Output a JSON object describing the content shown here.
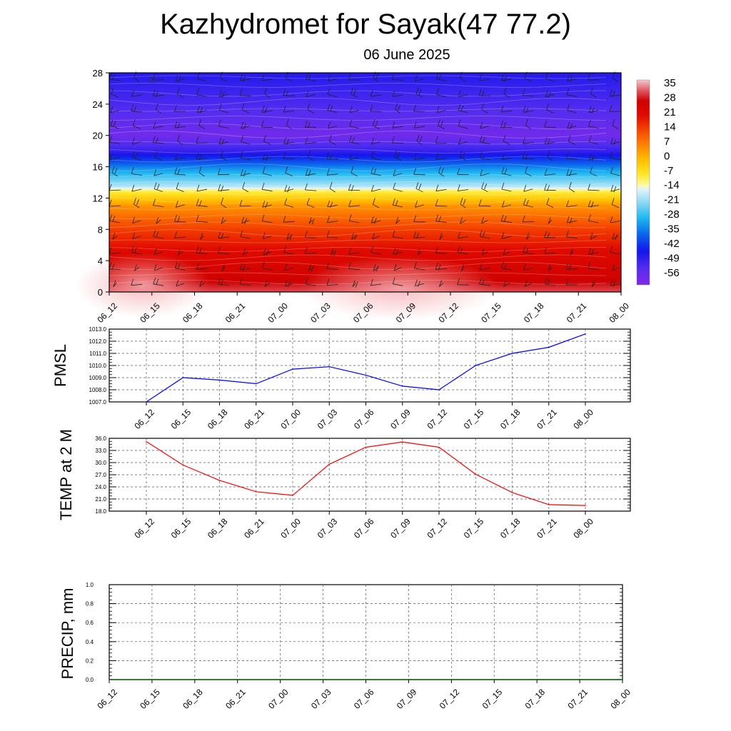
{
  "title": "Kazhydromet for Sayak(47 77.2)",
  "subtitle": "06 June 2025",
  "colors": {
    "pmsl_line": "#0000ff",
    "temp_line": "#ff0000",
    "precip_line": "#006400",
    "grid": "#555555"
  },
  "chart_data": [
    {
      "type": "heatmap",
      "title": "",
      "x_ticks": [
        "06_12",
        "06_15",
        "06_18",
        "06_21",
        "07_00",
        "07_03",
        "07_06",
        "07_09",
        "07_12",
        "07_15",
        "07_18",
        "07_21",
        "08_00"
      ],
      "y_ticks": [
        0,
        4,
        8,
        12,
        16,
        20,
        24,
        28
      ],
      "ylim": [
        0,
        28
      ],
      "colorbar_labels": [
        "35",
        "28",
        "21",
        "14",
        "7",
        "0",
        "-7",
        "-14",
        "-21",
        "-28",
        "-35",
        "-42",
        "-49",
        "-56"
      ],
      "colorbar_range": [
        -60,
        38
      ],
      "vertical_profile": [
        {
          "level": 0,
          "value": 32
        },
        {
          "level": 2,
          "value": 26
        },
        {
          "level": 5,
          "value": 22
        },
        {
          "level": 8,
          "value": 15
        },
        {
          "level": 11,
          "value": 5
        },
        {
          "level": 12.9,
          "value": -9
        },
        {
          "level": 13.5,
          "value": -18
        },
        {
          "level": 15.5,
          "value": -30
        },
        {
          "level": 18,
          "value": -48
        },
        {
          "level": 20,
          "value": -57
        },
        {
          "level": 23,
          "value": -52
        },
        {
          "level": 28,
          "value": -46
        }
      ],
      "annotations": [
        "wind barbs"
      ]
    },
    {
      "type": "line",
      "ylabel": "PMSL",
      "x": [
        "06_12",
        "06_15",
        "06_18",
        "06_21",
        "07_00",
        "07_03",
        "07_06",
        "07_09",
        "07_12",
        "07_15",
        "07_18",
        "07_21",
        "08_00"
      ],
      "values": [
        1007.0,
        1009.0,
        1008.8,
        1008.5,
        1009.7,
        1009.9,
        1009.2,
        1008.3,
        1008.0,
        1010.0,
        1011.0,
        1011.5,
        1012.6
      ],
      "ylim": [
        1007.0,
        1013.0
      ],
      "y_ticks": [
        "1007.0",
        "1008.0",
        "1009.0",
        "1010.0",
        "1011.0",
        "1012.0",
        "1013.0"
      ],
      "grid": true
    },
    {
      "type": "line",
      "ylabel": "TEMP at 2 M",
      "x": [
        "06_12",
        "06_15",
        "06_18",
        "06_21",
        "07_00",
        "07_03",
        "07_06",
        "07_09",
        "07_12",
        "07_15",
        "07_18",
        "07_21",
        "08_00"
      ],
      "values": [
        35.2,
        29.4,
        25.6,
        22.8,
        21.9,
        29.6,
        33.8,
        35.1,
        33.8,
        27.1,
        22.6,
        19.6,
        19.4
      ],
      "ylim": [
        18.0,
        36.0
      ],
      "y_ticks": [
        "18.0",
        "21.0",
        "24.0",
        "27.0",
        "30.0",
        "33.0",
        "36.0"
      ],
      "grid": true
    },
    {
      "type": "line",
      "ylabel": "PRECIP, mm",
      "x": [
        "06_12",
        "06_15",
        "06_18",
        "06_21",
        "07_00",
        "07_03",
        "07_06",
        "07_09",
        "07_12",
        "07_15",
        "07_18",
        "07_21",
        "08_00"
      ],
      "values": [
        0,
        0,
        0,
        0,
        0,
        0,
        0,
        0,
        0,
        0,
        0,
        0,
        0
      ],
      "ylim": [
        0.0,
        1.0
      ],
      "y_ticks": [
        "0.0",
        "0.2",
        "0.4",
        "0.6",
        "0.8",
        "1.0"
      ],
      "grid": true
    }
  ]
}
